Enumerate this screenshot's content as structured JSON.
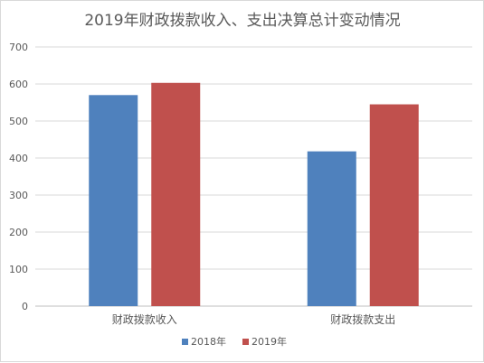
{
  "chart_data": {
    "type": "bar",
    "title": "2019年财政拨款收入、支出决算总计变动情况",
    "categories": [
      "财政拨款收入",
      "财政拨款支出"
    ],
    "series": [
      {
        "name": "2018年",
        "values": [
          570,
          418
        ],
        "color": "#4F81BD"
      },
      {
        "name": "2019年",
        "values": [
          603,
          545
        ],
        "color": "#C0504D"
      }
    ],
    "ylim": [
      0,
      700
    ],
    "yticks": [
      0,
      100,
      200,
      300,
      400,
      500,
      600,
      700
    ],
    "grid": true,
    "legend": "bottom",
    "xlabel": "",
    "ylabel": ""
  }
}
